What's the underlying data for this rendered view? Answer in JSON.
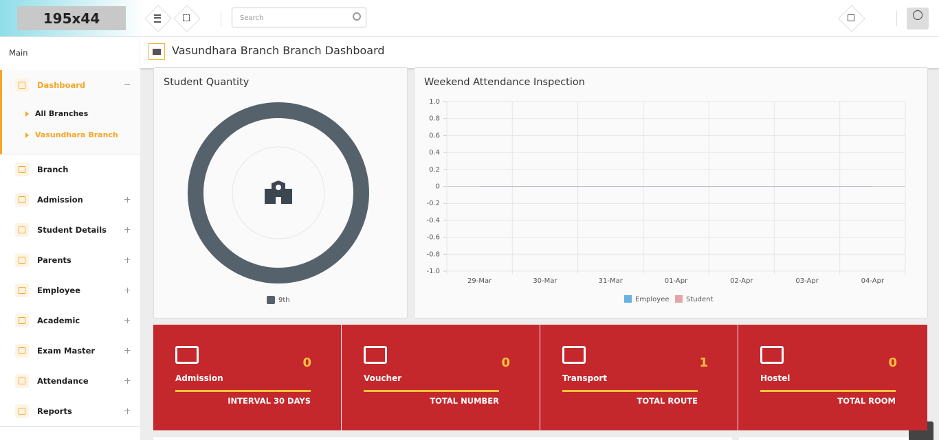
{
  "header": {
    "logo": "195x44",
    "search_placeholder": "Search"
  },
  "sidebar": {
    "section": "Main",
    "items": [
      {
        "label": "Dashboard",
        "children": [
          "All Branches",
          "Vasundhara Branch"
        ]
      },
      {
        "label": "Branch"
      },
      {
        "label": "Admission"
      },
      {
        "label": "Student Details"
      },
      {
        "label": "Parents"
      },
      {
        "label": "Employee"
      },
      {
        "label": "Academic"
      },
      {
        "label": "Exam Master"
      },
      {
        "label": "Attendance"
      },
      {
        "label": "Reports"
      }
    ]
  },
  "page_title": "Vasundhara Branch Branch Dashboard",
  "student_quantity": {
    "type": "pie",
    "title": "Student Quantity",
    "categories": [
      "9th"
    ],
    "values": [
      100
    ],
    "colors": [
      "#56626b"
    ]
  },
  "attendance": {
    "type": "line",
    "title": "Weekend Attendance Inspection",
    "categories": [
      "29-Mar",
      "30-Mar",
      "31-Mar",
      "01-Apr",
      "02-Apr",
      "03-Apr",
      "04-Apr"
    ],
    "series": [
      {
        "name": "Employee",
        "color": "#6ab3e0",
        "values": [
          0,
          0,
          0,
          0,
          0,
          0,
          0
        ]
      },
      {
        "name": "Student",
        "color": "#e3a6a6",
        "values": [
          0,
          0,
          0,
          0,
          0,
          0,
          0
        ]
      }
    ],
    "ylim": [
      -1,
      1
    ],
    "yticks": [
      {
        "value": -1,
        "label": "-1.0"
      },
      -0.8,
      -0.6,
      -0.4,
      -0.2,
      0,
      0.2,
      0.4,
      0.6,
      0.8,
      {
        "value": 1,
        "label": "1.0"
      }
    ],
    "grid": true
  },
  "stats": [
    {
      "label": "Admission",
      "value": 0,
      "caption": "INTERVAL 30 DAYS"
    },
    {
      "label": "Voucher",
      "value": 0,
      "caption": "TOTAL NUMBER"
    },
    {
      "label": "Transport",
      "value": 1,
      "caption": "TOTAL ROUTE"
    },
    {
      "label": "Hostel",
      "value": 0,
      "caption": "TOTAL ROOM"
    }
  ]
}
